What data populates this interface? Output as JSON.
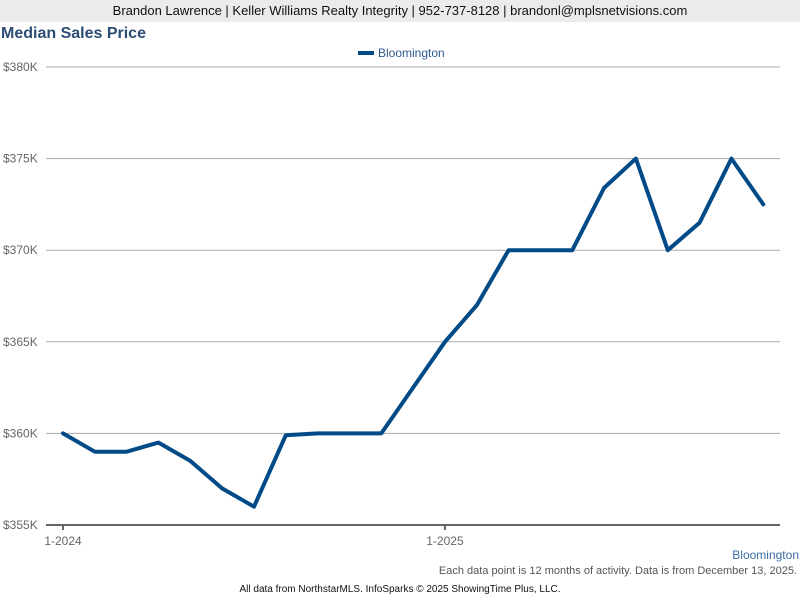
{
  "header": {
    "contact_line": "Brandon Lawrence | Keller Williams Realty Integrity | 952-737-8128 | brandonl@mplsnetvisions.com"
  },
  "chart_title": "Median Sales Price",
  "legend": {
    "label": "Bloomington",
    "color": "#004b87"
  },
  "region_label": "Bloomington",
  "note": "Each data point is 12 months of activity. Data is from December 13, 2025.",
  "footer": "All data from NorthstarMLS. InfoSparks © 2025 ShowingTime Plus, LLC.",
  "chart_data": {
    "type": "line",
    "title": "Median Sales Price",
    "xlabel": "",
    "ylabel": "",
    "ylim": [
      355000,
      380000
    ],
    "yticks": [
      355000,
      360000,
      365000,
      370000,
      375000,
      380000
    ],
    "ytick_labels": [
      "$355K",
      "$360K",
      "$365K",
      "$370K",
      "$375K",
      "$380K"
    ],
    "xtick_labels": [
      "1-2024",
      "1-2025"
    ],
    "grid": true,
    "legend_position": "top",
    "x": [
      "1-2024",
      "2-2024",
      "3-2024",
      "4-2024",
      "5-2024",
      "6-2024",
      "7-2024",
      "8-2024",
      "9-2024",
      "10-2024",
      "11-2024",
      "12-2024",
      "1-2025",
      "2-2025",
      "3-2025",
      "4-2025",
      "5-2025",
      "6-2025",
      "7-2025",
      "8-2025",
      "9-2025",
      "10-2025",
      "11-2025"
    ],
    "series": [
      {
        "name": "Bloomington",
        "color": "#004b87",
        "values": [
          360000,
          359000,
          359000,
          359500,
          358500,
          357000,
          356000,
          359900,
          360000,
          360000,
          360000,
          362500,
          365000,
          367000,
          370000,
          370000,
          370000,
          373400,
          375000,
          370000,
          371500,
          375000,
          372500
        ]
      }
    ]
  }
}
